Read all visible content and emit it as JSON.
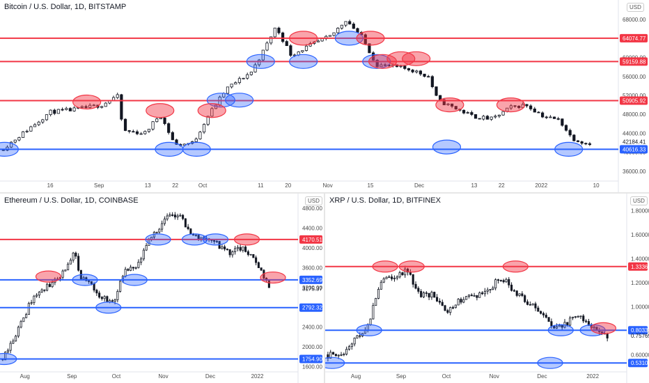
{
  "colors": {
    "support": "#2962ff",
    "resistance": "#f23645",
    "up_candle": "#ffffff",
    "down_candle": "#131722"
  },
  "panels": [
    {
      "id": "btc",
      "title": "Bitcoin / U.S. Dollar, 1D, BITSTAMP",
      "unit": "USD",
      "x_ticks": [
        {
          "label": "16",
          "x": 16
        },
        {
          "label": "Sep",
          "x": 32
        },
        {
          "label": "13",
          "x": 48
        },
        {
          "label": "22",
          "x": 57
        },
        {
          "label": "Oct",
          "x": 66
        },
        {
          "label": "11",
          "x": 85
        },
        {
          "label": "20",
          "x": 94
        },
        {
          "label": "Nov",
          "x": 107
        },
        {
          "label": "15",
          "x": 121
        },
        {
          "label": "Dec",
          "x": 137
        },
        {
          "label": "13",
          "x": 155
        },
        {
          "label": "22",
          "x": 164
        },
        {
          "label": "2022",
          "x": 177
        },
        {
          "label": "10",
          "x": 195
        }
      ],
      "y_ticks": [
        {
          "label": "36000.00",
          "v": 36000
        },
        {
          "label": "40000.00",
          "v": 40000
        },
        {
          "label": "44000.00",
          "v": 44000
        },
        {
          "label": "48000.00",
          "v": 48000
        },
        {
          "label": "52000.00",
          "v": 52000
        },
        {
          "label": "56000.00",
          "v": 56000
        },
        {
          "label": "60000.00",
          "v": 60000
        },
        {
          "label": "64000.00",
          "v": 64000
        },
        {
          "label": "68000.00",
          "v": 68000
        }
      ],
      "levels": [
        {
          "label": "64074.77",
          "v": 64074.77,
          "kind": "resistance"
        },
        {
          "label": "59159.88",
          "v": 59159.88,
          "kind": "resistance"
        },
        {
          "label": "50905.92",
          "v": 50905.92,
          "kind": "resistance"
        },
        {
          "label": "40616.33",
          "v": 40616.33,
          "kind": "support"
        }
      ],
      "last_price": {
        "label": "42184.41",
        "v": 42184.41
      },
      "anchors": [
        {
          "x": 0,
          "v": 40500
        },
        {
          "x": 8,
          "v": 44500
        },
        {
          "x": 16,
          "v": 48500
        },
        {
          "x": 24,
          "v": 49000
        },
        {
          "x": 33,
          "v": 50000
        },
        {
          "x": 38,
          "v": 52000
        },
        {
          "x": 40,
          "v": 44500
        },
        {
          "x": 47,
          "v": 44000
        },
        {
          "x": 52,
          "v": 48000
        },
        {
          "x": 57,
          "v": 41500
        },
        {
          "x": 63,
          "v": 42000
        },
        {
          "x": 68,
          "v": 48000
        },
        {
          "x": 74,
          "v": 53500
        },
        {
          "x": 82,
          "v": 57000
        },
        {
          "x": 86,
          "v": 61500
        },
        {
          "x": 90,
          "v": 66500
        },
        {
          "x": 95,
          "v": 60500
        },
        {
          "x": 101,
          "v": 62500
        },
        {
          "x": 108,
          "v": 64500
        },
        {
          "x": 113,
          "v": 68000
        },
        {
          "x": 118,
          "v": 64500
        },
        {
          "x": 123,
          "v": 58500
        },
        {
          "x": 129,
          "v": 58000
        },
        {
          "x": 134,
          "v": 57500
        },
        {
          "x": 140,
          "v": 56000
        },
        {
          "x": 143,
          "v": 51000
        },
        {
          "x": 148,
          "v": 49500
        },
        {
          "x": 155,
          "v": 47500
        },
        {
          "x": 161,
          "v": 47000
        },
        {
          "x": 167,
          "v": 49500
        },
        {
          "x": 172,
          "v": 50000
        },
        {
          "x": 178,
          "v": 47500
        },
        {
          "x": 183,
          "v": 46800
        },
        {
          "x": 187,
          "v": 43000
        },
        {
          "x": 192,
          "v": 41800
        },
        {
          "x": 194,
          "v": 42184
        }
      ],
      "ovals": [
        {
          "x": 1,
          "v": 40616,
          "kind": "support"
        },
        {
          "x": 55,
          "v": 40616,
          "kind": "support"
        },
        {
          "x": 64,
          "v": 40616,
          "kind": "support"
        },
        {
          "x": 146,
          "v": 41100,
          "kind": "support"
        },
        {
          "x": 186,
          "v": 40616,
          "kind": "support"
        },
        {
          "x": 72,
          "v": 51000,
          "kind": "support"
        },
        {
          "x": 78,
          "v": 51000,
          "kind": "support"
        },
        {
          "x": 85,
          "v": 59159,
          "kind": "support"
        },
        {
          "x": 99,
          "v": 59159,
          "kind": "support"
        },
        {
          "x": 114,
          "v": 64074,
          "kind": "support"
        },
        {
          "x": 123,
          "v": 59159,
          "kind": "support"
        },
        {
          "x": 28,
          "v": 50600,
          "kind": "resistance"
        },
        {
          "x": 52,
          "v": 48800,
          "kind": "resistance"
        },
        {
          "x": 69,
          "v": 48800,
          "kind": "resistance"
        },
        {
          "x": 99,
          "v": 64074,
          "kind": "resistance"
        },
        {
          "x": 121,
          "v": 64074,
          "kind": "resistance"
        },
        {
          "x": 125,
          "v": 59159,
          "kind": "resistance"
        },
        {
          "x": 131,
          "v": 59750,
          "kind": "resistance"
        },
        {
          "x": 136,
          "v": 59750,
          "kind": "resistance"
        },
        {
          "x": 147,
          "v": 50000,
          "kind": "resistance"
        },
        {
          "x": 167,
          "v": 50000,
          "kind": "resistance"
        }
      ]
    },
    {
      "id": "eth",
      "title": "Ethereum / U.S. Dollar, 1D, COINBASE",
      "unit": "USD",
      "x_ticks": [
        {
          "label": "Aug",
          "x": 9
        },
        {
          "label": "Sep",
          "x": 27
        },
        {
          "label": "Oct",
          "x": 44
        },
        {
          "label": "Nov",
          "x": 62
        },
        {
          "label": "Dec",
          "x": 80
        },
        {
          "label": "2022",
          "x": 98
        }
      ],
      "y_ticks": [
        {
          "label": "1600.00",
          "v": 1600
        },
        {
          "label": "2000.00",
          "v": 2000
        },
        {
          "label": "2400.00",
          "v": 2400
        },
        {
          "label": "2800.00",
          "v": 2800
        },
        {
          "label": "3200.00",
          "v": 3200
        },
        {
          "label": "3600.00",
          "v": 3600
        },
        {
          "label": "4000.00",
          "v": 4000
        },
        {
          "label": "4400.00",
          "v": 4400
        },
        {
          "label": "4800.00",
          "v": 4800
        }
      ],
      "levels": [
        {
          "label": "4170.51",
          "v": 4170.51,
          "kind": "resistance"
        },
        {
          "label": "3352.69",
          "v": 3352.69,
          "kind": "support"
        },
        {
          "label": "2792.32",
          "v": 2792.32,
          "kind": "support"
        },
        {
          "label": "1754.90",
          "v": 1754.9,
          "kind": "support"
        }
      ],
      "last_price": {
        "label": "3175.37",
        "v": 3175.37
      },
      "anchors": [
        {
          "x": 0,
          "v": 1750
        },
        {
          "x": 6,
          "v": 2300
        },
        {
          "x": 12,
          "v": 3000
        },
        {
          "x": 20,
          "v": 3300
        },
        {
          "x": 25,
          "v": 3600
        },
        {
          "x": 28,
          "v": 3900
        },
        {
          "x": 30,
          "v": 3400
        },
        {
          "x": 34,
          "v": 3300
        },
        {
          "x": 38,
          "v": 3000
        },
        {
          "x": 43,
          "v": 2900
        },
        {
          "x": 47,
          "v": 3500
        },
        {
          "x": 52,
          "v": 3600
        },
        {
          "x": 57,
          "v": 4200
        },
        {
          "x": 63,
          "v": 4600
        },
        {
          "x": 68,
          "v": 4700
        },
        {
          "x": 72,
          "v": 4300
        },
        {
          "x": 76,
          "v": 4200
        },
        {
          "x": 80,
          "v": 4200
        },
        {
          "x": 84,
          "v": 4000
        },
        {
          "x": 88,
          "v": 3900
        },
        {
          "x": 92,
          "v": 4000
        },
        {
          "x": 96,
          "v": 3800
        },
        {
          "x": 100,
          "v": 3500
        },
        {
          "x": 103,
          "v": 3175
        }
      ],
      "ovals": [
        {
          "x": 1,
          "v": 1754,
          "kind": "support"
        },
        {
          "x": 32,
          "v": 3352,
          "kind": "support"
        },
        {
          "x": 41,
          "v": 2792,
          "kind": "support"
        },
        {
          "x": 51,
          "v": 3352,
          "kind": "support"
        },
        {
          "x": 60,
          "v": 4170,
          "kind": "support"
        },
        {
          "x": 74,
          "v": 4170,
          "kind": "support"
        },
        {
          "x": 82,
          "v": 4170,
          "kind": "support"
        },
        {
          "x": 18,
          "v": 3420,
          "kind": "resistance"
        },
        {
          "x": 94,
          "v": 4170,
          "kind": "resistance"
        },
        {
          "x": 104,
          "v": 3400,
          "kind": "resistance"
        }
      ]
    },
    {
      "id": "xrp",
      "title": "XRP / U.S. Dollar, 1D, BITFINEX",
      "unit": "USD",
      "x_ticks": [
        {
          "label": "Aug",
          "x": 11
        },
        {
          "label": "Sep",
          "x": 28
        },
        {
          "label": "Oct",
          "x": 45
        },
        {
          "label": "Nov",
          "x": 63
        },
        {
          "label": "Dec",
          "x": 81
        },
        {
          "label": "2022",
          "x": 100
        }
      ],
      "y_ticks": [
        {
          "label": "0.60000",
          "v": 0.6
        },
        {
          "label": "0.80000",
          "v": 0.8
        },
        {
          "label": "1.00000",
          "v": 1
        },
        {
          "label": "1.20000",
          "v": 1.2
        },
        {
          "label": "1.40000",
          "v": 1.4
        },
        {
          "label": "1.60000",
          "v": 1.6
        },
        {
          "label": "1.80000",
          "v": 1.8
        }
      ],
      "levels": [
        {
          "label": "1.33360",
          "v": 1.3336,
          "kind": "resistance"
        },
        {
          "label": "0.80330",
          "v": 0.8033,
          "kind": "support"
        },
        {
          "label": "0.53108",
          "v": 0.53108,
          "kind": "support"
        }
      ],
      "last_price": {
        "label": "0.75769",
        "v": 0.75769
      },
      "anchors": [
        {
          "x": 0,
          "v": 0.6
        },
        {
          "x": 5,
          "v": 0.58
        },
        {
          "x": 10,
          "v": 0.72
        },
        {
          "x": 15,
          "v": 0.8
        },
        {
          "x": 20,
          "v": 1.2
        },
        {
          "x": 25,
          "v": 1.25
        },
        {
          "x": 30,
          "v": 1.3
        },
        {
          "x": 35,
          "v": 1.1
        },
        {
          "x": 40,
          "v": 1.1
        },
        {
          "x": 45,
          "v": 0.95
        },
        {
          "x": 50,
          "v": 1.05
        },
        {
          "x": 55,
          "v": 1.1
        },
        {
          "x": 60,
          "v": 1.1
        },
        {
          "x": 65,
          "v": 1.25
        },
        {
          "x": 70,
          "v": 1.15
        },
        {
          "x": 75,
          "v": 1.05
        },
        {
          "x": 80,
          "v": 0.95
        },
        {
          "x": 85,
          "v": 0.82
        },
        {
          "x": 90,
          "v": 0.85
        },
        {
          "x": 95,
          "v": 0.95
        },
        {
          "x": 98,
          "v": 0.84
        },
        {
          "x": 102,
          "v": 0.8
        },
        {
          "x": 106,
          "v": 0.76
        }
      ],
      "ovals": [
        {
          "x": 2,
          "v": 0.531,
          "kind": "support"
        },
        {
          "x": 16,
          "v": 0.8033,
          "kind": "support"
        },
        {
          "x": 84,
          "v": 0.531,
          "kind": "support"
        },
        {
          "x": 88,
          "v": 0.8033,
          "kind": "support"
        },
        {
          "x": 100,
          "v": 0.8033,
          "kind": "support"
        },
        {
          "x": 22,
          "v": 1.3336,
          "kind": "resistance"
        },
        {
          "x": 32,
          "v": 1.3336,
          "kind": "resistance"
        },
        {
          "x": 71,
          "v": 1.3336,
          "kind": "resistance"
        },
        {
          "x": 104,
          "v": 0.82,
          "kind": "resistance"
        }
      ]
    }
  ]
}
